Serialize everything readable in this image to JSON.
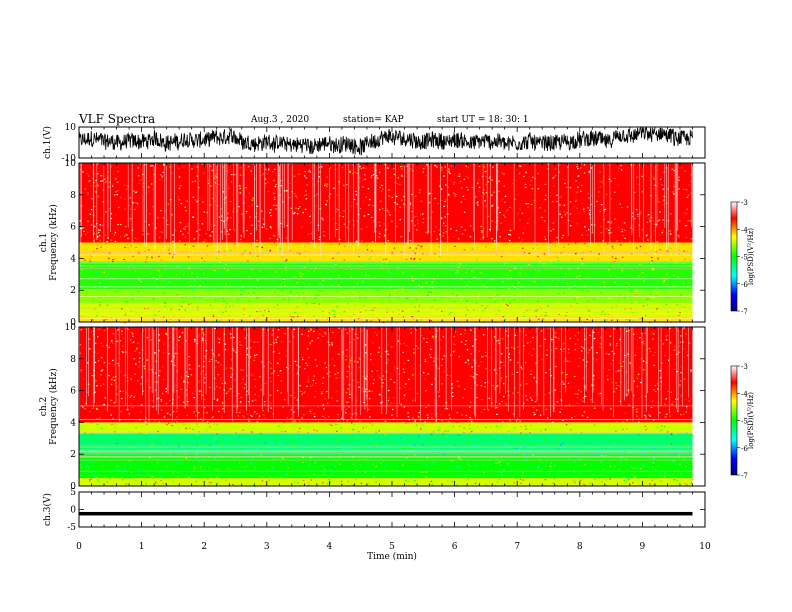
{
  "header": {
    "title": "VLF Spectra",
    "date": "Aug.3 , 2020",
    "station": "station= KAP",
    "start": "start UT = 18: 30: 1"
  },
  "chart_data": [
    {
      "id": "ch1-waveform",
      "type": "line",
      "ylabel": "ch.1(V)",
      "ylim": [
        -10,
        10
      ],
      "yticks": [
        "10",
        "-10"
      ],
      "xlim": [
        0,
        10
      ],
      "description_values": "dense noisy waveform spanning roughly -10 to 10 V from t=0 to ~9.8 min"
    },
    {
      "id": "ch1-spectrogram",
      "type": "heatmap",
      "ylabel": "ch.1\nFrequency (kHz)",
      "ylabel_lines": [
        "ch.1",
        "Frequency (kHz)"
      ],
      "ylim": [
        0,
        10
      ],
      "yticks": [
        "0",
        "2",
        "4",
        "6",
        "8",
        "10"
      ],
      "xlim": [
        0,
        10
      ],
      "data_end_min": 9.8,
      "bands": [
        {
          "from": 0,
          "to": 0.4,
          "level": -4.2
        },
        {
          "from": 0.4,
          "to": 1.2,
          "level": -4.4
        },
        {
          "from": 1.2,
          "to": 2.0,
          "level": -4.6
        },
        {
          "from": 2.0,
          "to": 3.8,
          "level": -4.9
        },
        {
          "from": 3.8,
          "to": 5.0,
          "level": -4.2
        },
        {
          "from": 5.0,
          "to": 10,
          "level": -3.6
        }
      ],
      "colorbar": {
        "label": "log(PSD)(V²/Hz)",
        "range": [
          -7,
          -3
        ],
        "ticks": [
          "-3",
          "-4",
          "-5",
          "-6",
          "-7"
        ]
      }
    },
    {
      "id": "ch2-spectrogram",
      "type": "heatmap",
      "ylabel_lines": [
        "ch.2",
        "Frequency (kHz)"
      ],
      "ylim": [
        0,
        10
      ],
      "yticks": [
        "0",
        "2",
        "4",
        "6",
        "8",
        "10"
      ],
      "xlim": [
        0,
        10
      ],
      "data_end_min": 9.8,
      "bands": [
        {
          "from": 0,
          "to": 0.5,
          "level": -4.4
        },
        {
          "from": 0.5,
          "to": 2.0,
          "level": -5.0
        },
        {
          "from": 2.0,
          "to": 3.3,
          "level": -5.3
        },
        {
          "from": 3.3,
          "to": 4.0,
          "level": -4.4
        },
        {
          "from": 4.0,
          "to": 10,
          "level": -3.6
        }
      ],
      "colorbar": {
        "label": "log(PSD)(V²/Hz)",
        "range": [
          -7,
          -3
        ],
        "ticks": [
          "-3",
          "-4",
          "-5",
          "-6",
          "-7"
        ]
      }
    },
    {
      "id": "ch3-waveform",
      "type": "line",
      "ylabel": "ch.3(V)",
      "ylim": [
        -5,
        5
      ],
      "yticks": [
        "5",
        "0",
        "-5"
      ],
      "xlim": [
        0,
        10
      ],
      "level_v": -1.2,
      "band_halfwidth_v": 0.5
    }
  ],
  "xaxis": {
    "label": "Time (min)",
    "ticks": [
      "0",
      "1",
      "2",
      "3",
      "4",
      "5",
      "6",
      "7",
      "8",
      "9",
      "10"
    ]
  },
  "colors": {
    "jet": [
      "#000080",
      "#0000ff",
      "#00ffff",
      "#00ff00",
      "#ffff00",
      "#ff0000",
      "#ffffff"
    ]
  }
}
